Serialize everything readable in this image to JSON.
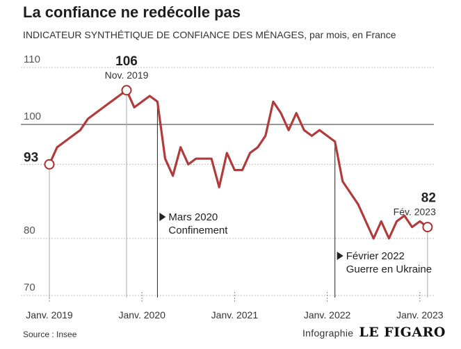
{
  "header": {
    "title": "La confiance ne redécolle pas",
    "subtitle": "INDICATEUR SYNTHÉTIQUE DE CONFIANCE DES MÉNAGES, par mois, en France"
  },
  "footer": {
    "source": "Source : Insee",
    "credit_label": "Infographie",
    "brand": "LE FIGARO"
  },
  "colors": {
    "line": "#b33a3a",
    "reference_line": "#333333",
    "grid": "#bdbdbd",
    "marker_stroke": "#a8302f"
  },
  "chart_data": {
    "type": "line",
    "title": "La confiance ne redécolle pas",
    "subtitle": "INDICATEUR SYNTHÉTIQUE DE CONFIANCE DES MÉNAGES, par mois, en France",
    "x_start": "2019-01",
    "xlim": [
      "2019-01",
      "2023-02"
    ],
    "ylim": [
      68,
      113
    ],
    "y_ticks": [
      70,
      80,
      93,
      100,
      110
    ],
    "y_tick_labels": [
      "70",
      "80",
      "93",
      "100",
      "110"
    ],
    "y_tick_bold": [
      false,
      false,
      true,
      false,
      false
    ],
    "reference_line": 100,
    "grid": true,
    "x_ticks": [
      {
        "date": "2019-01",
        "label": "Janv. 2019"
      },
      {
        "date": "2020-01",
        "label": "Janv. 2020"
      },
      {
        "date": "2021-01",
        "label": "Janv. 2021"
      },
      {
        "date": "2022-01",
        "label": "Janv. 2022"
      },
      {
        "date": "2023-01",
        "label": "Janv. 2023"
      }
    ],
    "series": [
      {
        "values": [
          93,
          96,
          97,
          98,
          99,
          101,
          102,
          103,
          104,
          105,
          106,
          103,
          104,
          105,
          104,
          94,
          91,
          96,
          93,
          94,
          94,
          94,
          89,
          95,
          92,
          92,
          95,
          96,
          98,
          104,
          102,
          99,
          102,
          99,
          98,
          99,
          98,
          97,
          90,
          88,
          86,
          83,
          80,
          83,
          80,
          83,
          84,
          82,
          83,
          82
        ]
      }
    ],
    "highlights": [
      {
        "date": "2019-11",
        "value": 106,
        "value_label": "106",
        "label": "Nov. 2019"
      },
      {
        "date": "2023-02",
        "value": 82,
        "value_label": "82",
        "label": "Fév. 2023"
      }
    ],
    "start_marker": {
      "date": "2019-01",
      "value": 93
    },
    "annotations": [
      {
        "date": "2020-03",
        "lines": [
          "Mars 2020",
          "Confinement"
        ]
      },
      {
        "date": "2022-02",
        "lines": [
          "Février 2022",
          "Guerre en Ukraine"
        ]
      }
    ]
  }
}
